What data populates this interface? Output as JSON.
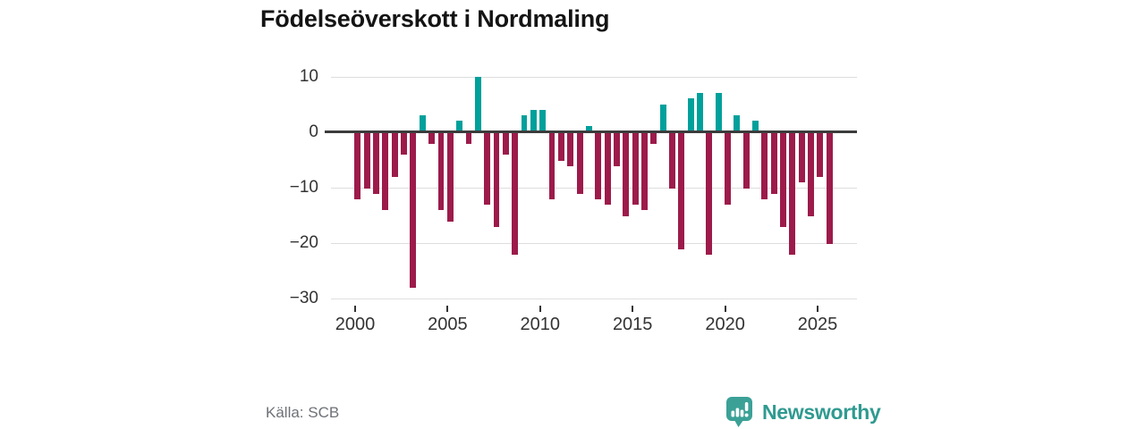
{
  "title": "Födelseöverskott i Nordmaling",
  "source": "Källa: SCB",
  "brand": {
    "name": "Newsworthy",
    "icon": "newsworthy-bubble-chart-icon"
  },
  "colors": {
    "positive_bar": "#00a09b",
    "negative_bar": "#9c1b4a",
    "zero_line": "#3c3c3c",
    "gridline": "#dedede",
    "axis_text": "#333333",
    "brand_teal": "#2f9a90",
    "logo_fill": "#3ba197"
  },
  "chart_data": {
    "type": "bar",
    "title": "Födelseöverskott i Nordmaling",
    "xlabel": "",
    "ylabel": "",
    "ylim": [
      -30,
      10
    ],
    "grid": true,
    "legend": false,
    "y_ticks": [
      10,
      0,
      -10,
      -20,
      -30
    ],
    "y_tick_labels": [
      "10",
      "0",
      "−10",
      "−20",
      "−30"
    ],
    "x_ticks": [
      {
        "label": "2000",
        "year": 2000
      },
      {
        "label": "2005",
        "year": 2005
      },
      {
        "label": "2010",
        "year": 2010
      },
      {
        "label": "2015",
        "year": 2015
      },
      {
        "label": "2020",
        "year": 2020
      },
      {
        "label": "2025",
        "year": 2025
      }
    ],
    "period_type": "half-year",
    "series": [
      {
        "name": "Födelseöverskott",
        "x": [
          "2000H1",
          "2000H2",
          "2001H1",
          "2001H2",
          "2002H1",
          "2002H2",
          "2003H1",
          "2003H2",
          "2004H1",
          "2004H2",
          "2005H1",
          "2005H2",
          "2006H1",
          "2006H2",
          "2007H1",
          "2007H2",
          "2008H1",
          "2008H2",
          "2009H1",
          "2009H2",
          "2010H1",
          "2010H2",
          "2011H1",
          "2011H2",
          "2012H1",
          "2012H2",
          "2013H1",
          "2013H2",
          "2014H1",
          "2014H2",
          "2015H1",
          "2015H2",
          "2016H1",
          "2016H2",
          "2017H1",
          "2017H2",
          "2018H1",
          "2018H2",
          "2019H1",
          "2019H2",
          "2020H1",
          "2020H2",
          "2021H1",
          "2021H2",
          "2022H1",
          "2022H2",
          "2023H1",
          "2023H2",
          "2024H1",
          "2024H2",
          "2025H1",
          "2025H2"
        ],
        "values": [
          -12,
          -10,
          -11,
          -14,
          -8,
          -4,
          -28,
          3,
          -2,
          -14,
          -16,
          2,
          -2,
          10,
          -13,
          -17,
          -4,
          -22,
          3,
          4,
          4,
          -12,
          -5,
          -6,
          -11,
          1,
          -12,
          -13,
          -6,
          -15,
          -13,
          -14,
          -2,
          5,
          -10,
          -21,
          6,
          7,
          -22,
          7,
          -13,
          3,
          -10,
          2,
          -12,
          -11,
          -17,
          -22,
          -9,
          -15,
          -8,
          -20
        ]
      }
    ]
  }
}
